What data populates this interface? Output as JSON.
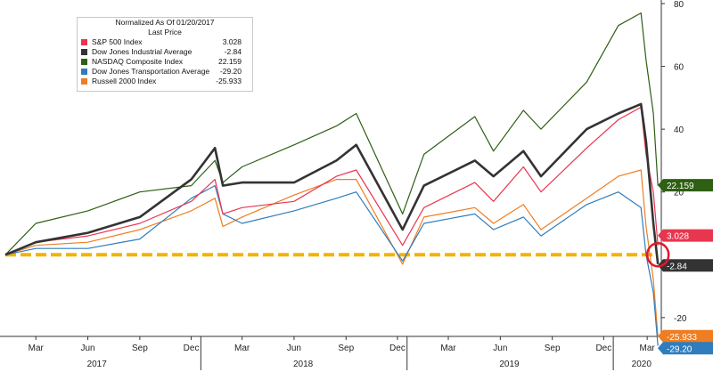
{
  "chart_data": {
    "type": "line",
    "title": "Normalized As Of 01/20/2017",
    "subtitle": "Last Price",
    "ylim": [
      -26,
      80
    ],
    "yticks": [
      -20,
      20,
      40,
      60,
      80
    ],
    "grid": false,
    "legend_position": "top-left",
    "x_month_labels": [
      "Mar",
      "Jun",
      "Sep",
      "Dec",
      "Mar",
      "Jun",
      "Sep",
      "Dec",
      "Mar",
      "Jun",
      "Sep",
      "Dec",
      "Mar"
    ],
    "x_year_labels": [
      "2017",
      "2018",
      "2019",
      "2020"
    ],
    "x_dates": [
      "2017-01-20",
      "2017-03-15",
      "2017-06-15",
      "2017-09-15",
      "2017-12-15",
      "2018-01-26",
      "2018-02-09",
      "2018-03-15",
      "2018-06-15",
      "2018-08-29",
      "2018-10-03",
      "2018-12-24",
      "2019-01-31",
      "2019-05-01",
      "2019-06-03",
      "2019-07-26",
      "2019-08-26",
      "2019-11-15",
      "2020-01-10",
      "2020-02-19",
      "2020-02-28",
      "2020-03-12",
      "2020-03-20"
    ],
    "series": [
      {
        "name": "S&P 500 Index",
        "color": "#e8364f",
        "last": "3.028",
        "values": [
          0,
          4,
          6,
          10,
          17,
          24,
          13,
          15,
          17,
          25,
          27,
          3,
          15,
          23,
          17,
          28,
          20,
          34,
          43,
          47,
          32,
          20,
          3
        ]
      },
      {
        "name": "Dow Jones Industrial Average",
        "color": "#333333",
        "last": "-2.84",
        "values": [
          0,
          4,
          7,
          12,
          24,
          34,
          22,
          23,
          23,
          30,
          35,
          8,
          22,
          30,
          25,
          33,
          25,
          40,
          45,
          48,
          36,
          10,
          -3
        ]
      },
      {
        "name": "NASDAQ Composite Index",
        "color": "#2e5f13",
        "last": "22.159",
        "values": [
          0,
          10,
          14,
          20,
          22,
          30,
          23,
          28,
          35,
          41,
          45,
          13,
          32,
          44,
          33,
          46,
          40,
          55,
          73,
          77,
          62,
          45,
          22
        ]
      },
      {
        "name": "Dow Jones Transportation Average",
        "color": "#2f7dbd",
        "last": "-29.20",
        "values": [
          0,
          2,
          2,
          5,
          18,
          22,
          13,
          10,
          14,
          18,
          20,
          -2,
          10,
          13,
          8,
          12,
          6,
          16,
          20,
          15,
          0,
          -12,
          -29
        ]
      },
      {
        "name": "Russell 2000 Index",
        "color": "#ef7d22",
        "last": "-25.933",
        "values": [
          0,
          3,
          4,
          8,
          14,
          18,
          9,
          12,
          19,
          24,
          24,
          -3,
          12,
          15,
          10,
          16,
          8,
          18,
          25,
          27,
          9,
          -8,
          -26
        ]
      }
    ],
    "reference_line": {
      "y": 0,
      "color": "#f2b400"
    },
    "markers": {
      "circle_color": "#e0192d"
    }
  }
}
